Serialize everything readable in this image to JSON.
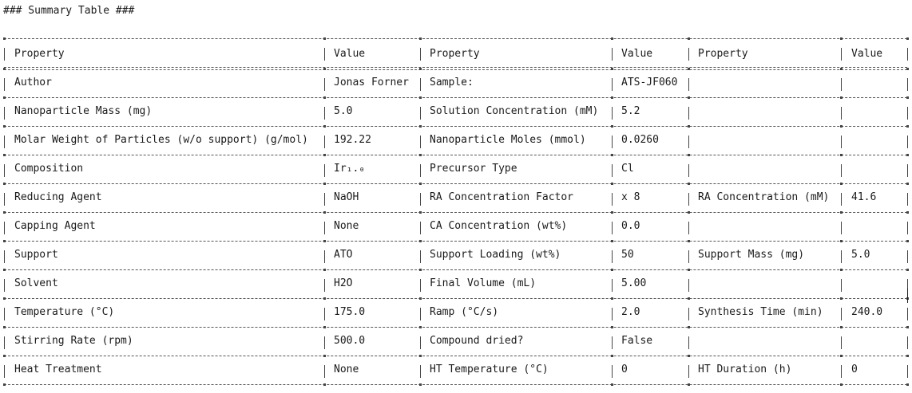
{
  "title": "### Summary Table ###",
  "headers": [
    "Property",
    "Value",
    "Property",
    "Value",
    "Property",
    "Value"
  ],
  "rows": [
    [
      "Author",
      "Jonas Forner",
      "Sample:",
      "ATS-JF060",
      "",
      ""
    ],
    [
      "Nanoparticle Mass (mg)",
      "5.0",
      "Solution Concentration (mM)",
      "5.2",
      "",
      ""
    ],
    [
      "Molar Weight of Particles (w/o support) (g/mol)",
      "192.22",
      "Nanoparticle Moles (mmol)",
      "0.0260",
      "",
      ""
    ],
    [
      "Composition",
      "Ir₁.₀",
      "Precursor Type",
      "Cl",
      "",
      ""
    ],
    [
      "Reducing Agent",
      "NaOH",
      "RA Concentration Factor",
      "x 8",
      "RA Concentration (mM)",
      "41.6"
    ],
    [
      "Capping Agent",
      "None",
      "CA Concentration (wt%)",
      "0.0",
      "",
      ""
    ],
    [
      "Support",
      "ATO",
      "Support Loading (wt%)",
      "50",
      "Support Mass (mg)",
      "5.0"
    ],
    [
      "Solvent",
      "H2O",
      "Final Volume (mL)",
      "5.00",
      "",
      ""
    ],
    [
      "Temperature (°C)",
      "175.0",
      "Ramp (°C/s)",
      "2.0",
      "Synthesis Time (min)",
      "240.0"
    ],
    [
      "Stirring Rate (rpm)",
      "500.0",
      "Compound dried?",
      "False",
      "",
      ""
    ],
    [
      "Heat Treatment",
      "None",
      "HT Temperature (°C)",
      "0",
      "HT Duration (h)",
      "0"
    ]
  ]
}
